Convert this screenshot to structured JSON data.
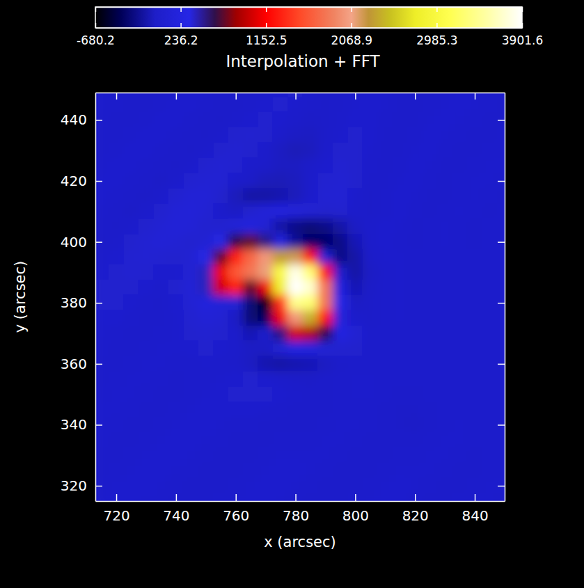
{
  "chart_data": {
    "type": "heatmap",
    "title": "Interpolation + FFT",
    "x_label": "x (arcsec)",
    "y_label": "y (arcsec)",
    "xlim": [
      713,
      850
    ],
    "ylim": [
      315,
      449
    ],
    "xticks": [
      720,
      740,
      760,
      780,
      800,
      820,
      840
    ],
    "yticks": [
      320,
      340,
      360,
      380,
      400,
      420,
      440
    ],
    "x": [
      715,
      720,
      725,
      730,
      735,
      740,
      745,
      750,
      755,
      760,
      765,
      770,
      775,
      780,
      785,
      790,
      795,
      800,
      805,
      810,
      815,
      820,
      825,
      830,
      835,
      840,
      845,
      850
    ],
    "y": [
      450,
      445,
      440,
      435,
      430,
      425,
      420,
      415,
      410,
      405,
      400,
      395,
      390,
      385,
      380,
      375,
      370,
      365,
      360,
      355,
      350,
      345,
      340,
      335,
      330,
      325,
      320,
      315
    ],
    "z": [
      [
        20,
        10,
        0,
        -20,
        -20,
        0,
        20,
        20,
        0,
        -20,
        -20,
        0,
        20,
        30,
        10,
        -10,
        -20,
        0,
        20,
        20,
        0,
        -10,
        -20,
        0,
        10,
        20,
        10,
        0
      ],
      [
        10,
        0,
        -20,
        -20,
        0,
        20,
        20,
        0,
        -20,
        -20,
        0,
        20,
        30,
        10,
        -10,
        -30,
        -10,
        10,
        20,
        10,
        -10,
        -20,
        0,
        10,
        20,
        10,
        0,
        -10
      ],
      [
        0,
        -20,
        -20,
        0,
        20,
        20,
        0,
        -20,
        -30,
        0,
        20,
        40,
        20,
        -10,
        -40,
        -30,
        0,
        20,
        20,
        0,
        -20,
        -10,
        10,
        20,
        10,
        0,
        -10,
        -10
      ],
      [
        -20,
        -20,
        0,
        20,
        20,
        0,
        -20,
        -30,
        0,
        30,
        50,
        30,
        -10,
        -50,
        -60,
        -30,
        10,
        30,
        20,
        -10,
        -20,
        0,
        20,
        10,
        0,
        -10,
        -10,
        0
      ],
      [
        -20,
        0,
        20,
        20,
        0,
        -20,
        -30,
        0,
        40,
        60,
        40,
        0,
        -60,
        -90,
        -70,
        -20,
        30,
        40,
        10,
        -20,
        -10,
        10,
        20,
        0,
        -10,
        -10,
        0,
        10
      ],
      [
        0,
        20,
        20,
        0,
        -20,
        -30,
        0,
        50,
        80,
        60,
        0,
        -30,
        -60,
        -60,
        -30,
        20,
        60,
        40,
        0,
        -20,
        0,
        20,
        10,
        -10,
        -10,
        0,
        10,
        10
      ],
      [
        20,
        20,
        0,
        -20,
        -40,
        0,
        60,
        100,
        80,
        0,
        -40,
        -80,
        -90,
        -70,
        -20,
        60,
        80,
        30,
        -20,
        -10,
        10,
        20,
        0,
        -10,
        0,
        10,
        10,
        0
      ],
      [
        20,
        0,
        -20,
        -40,
        0,
        60,
        120,
        120,
        30,
        -80,
        -150,
        -150,
        -120,
        -80,
        0,
        80,
        90,
        10,
        -30,
        0,
        20,
        10,
        -10,
        -10,
        0,
        10,
        0,
        -10
      ],
      [
        0,
        -20,
        -40,
        0,
        50,
        120,
        150,
        100,
        0,
        -50,
        50,
        150,
        200,
        150,
        80,
        40,
        50,
        0,
        -30,
        0,
        20,
        0,
        -10,
        0,
        10,
        0,
        -10,
        0
      ],
      [
        -20,
        -30,
        0,
        40,
        100,
        150,
        120,
        50,
        50,
        150,
        200,
        100,
        -150,
        -250,
        -300,
        -250,
        -150,
        -50,
        0,
        20,
        10,
        -10,
        0,
        10,
        0,
        -10,
        0,
        10
      ],
      [
        -30,
        0,
        30,
        80,
        120,
        100,
        50,
        100,
        300,
        600,
        700,
        500,
        200,
        -200,
        -350,
        -350,
        -250,
        -100,
        0,
        20,
        0,
        -10,
        0,
        10,
        0,
        -10,
        0,
        10
      ],
      [
        0,
        20,
        60,
        80,
        60,
        30,
        80,
        300,
        700,
        1300,
        1700,
        2000,
        2300,
        2200,
        1200,
        100,
        -250,
        -150,
        -30,
        10,
        10,
        0,
        0,
        0,
        0,
        0,
        0,
        0
      ],
      [
        20,
        40,
        60,
        50,
        20,
        20,
        100,
        400,
        1100,
        1600,
        1800,
        2100,
        3000,
        3800,
        3300,
        1200,
        0,
        -150,
        -50,
        0,
        10,
        0,
        0,
        0,
        0,
        0,
        0,
        0
      ],
      [
        30,
        40,
        40,
        20,
        0,
        30,
        120,
        400,
        1000,
        1300,
        700,
        1100,
        2800,
        3900,
        3700,
        1800,
        200,
        -100,
        -40,
        0,
        10,
        0,
        0,
        0,
        0,
        0,
        0,
        0
      ],
      [
        30,
        30,
        20,
        0,
        -10,
        20,
        100,
        200,
        150,
        100,
        -300,
        -650,
        1400,
        3400,
        3300,
        1800,
        300,
        -50,
        -30,
        0,
        10,
        0,
        0,
        0,
        0,
        0,
        0,
        0
      ],
      [
        20,
        20,
        0,
        -10,
        -10,
        10,
        60,
        120,
        100,
        -50,
        -300,
        -400,
        1100,
        2000,
        2400,
        1200,
        350,
        0,
        -30,
        0,
        10,
        0,
        0,
        0,
        0,
        0,
        0,
        0
      ],
      [
        10,
        0,
        -10,
        -10,
        0,
        10,
        30,
        60,
        40,
        0,
        -100,
        0,
        500,
        1000,
        900,
        600,
        250,
        100,
        0,
        0,
        0,
        0,
        0,
        0,
        0,
        0,
        0,
        0
      ],
      [
        0,
        -10,
        -10,
        0,
        10,
        10,
        20,
        30,
        20,
        0,
        -50,
        -50,
        100,
        250,
        200,
        100,
        50,
        30,
        0,
        0,
        0,
        0,
        0,
        0,
        0,
        0,
        0,
        0
      ],
      [
        -10,
        -10,
        0,
        10,
        10,
        0,
        0,
        10,
        0,
        -20,
        -60,
        -120,
        -150,
        -120,
        -100,
        -60,
        -20,
        0,
        0,
        0,
        0,
        0,
        0,
        0,
        0,
        0,
        0,
        0
      ],
      [
        -10,
        0,
        10,
        10,
        0,
        -10,
        0,
        0,
        10,
        20,
        30,
        20,
        0,
        -30,
        -40,
        -20,
        0,
        10,
        10,
        0,
        0,
        0,
        0,
        0,
        0,
        0,
        0,
        0
      ],
      [
        0,
        10,
        10,
        0,
        -10,
        -10,
        0,
        10,
        20,
        30,
        40,
        30,
        20,
        0,
        -10,
        -10,
        0,
        10,
        10,
        0,
        -10,
        -10,
        0,
        0,
        0,
        0,
        0,
        0
      ],
      [
        10,
        10,
        0,
        -10,
        -10,
        0,
        10,
        20,
        20,
        20,
        20,
        10,
        0,
        -10,
        -20,
        -10,
        0,
        0,
        0,
        -10,
        -30,
        -30,
        -10,
        0,
        0,
        0,
        0,
        0
      ],
      [
        10,
        0,
        -10,
        -10,
        0,
        10,
        20,
        20,
        10,
        0,
        0,
        -10,
        -10,
        -10,
        -10,
        0,
        10,
        10,
        0,
        -10,
        -30,
        -40,
        -20,
        0,
        10,
        0,
        0,
        0
      ],
      [
        0,
        -10,
        -10,
        0,
        10,
        20,
        20,
        10,
        0,
        -10,
        -10,
        -10,
        0,
        0,
        0,
        10,
        10,
        0,
        -10,
        -20,
        -20,
        -20,
        0,
        10,
        10,
        0,
        0,
        0
      ],
      [
        -10,
        -10,
        0,
        10,
        20,
        20,
        10,
        0,
        -10,
        -20,
        -10,
        0,
        10,
        10,
        10,
        10,
        0,
        -10,
        -20,
        -10,
        0,
        0,
        10,
        10,
        0,
        -10,
        0,
        0
      ],
      [
        -10,
        0,
        10,
        20,
        20,
        10,
        0,
        -10,
        -20,
        -10,
        0,
        10,
        20,
        20,
        10,
        0,
        -10,
        -20,
        -10,
        0,
        10,
        10,
        10,
        0,
        -10,
        -10,
        0,
        10
      ],
      [
        0,
        10,
        20,
        20,
        10,
        0,
        -10,
        -20,
        -10,
        0,
        10,
        20,
        20,
        10,
        0,
        -10,
        -20,
        -10,
        0,
        10,
        20,
        10,
        0,
        -10,
        -10,
        0,
        10,
        10
      ],
      [
        10,
        20,
        20,
        10,
        0,
        -10,
        -20,
        -10,
        0,
        10,
        20,
        20,
        10,
        0,
        -10,
        -20,
        -10,
        0,
        10,
        20,
        20,
        0,
        -10,
        -10,
        0,
        10,
        10,
        0
      ]
    ],
    "colorbar": {
      "range": [
        -680.2,
        3901.6
      ],
      "ticks": [
        -680.2,
        236.2,
        1152.5,
        2068.9,
        2985.3,
        3901.6
      ]
    }
  }
}
